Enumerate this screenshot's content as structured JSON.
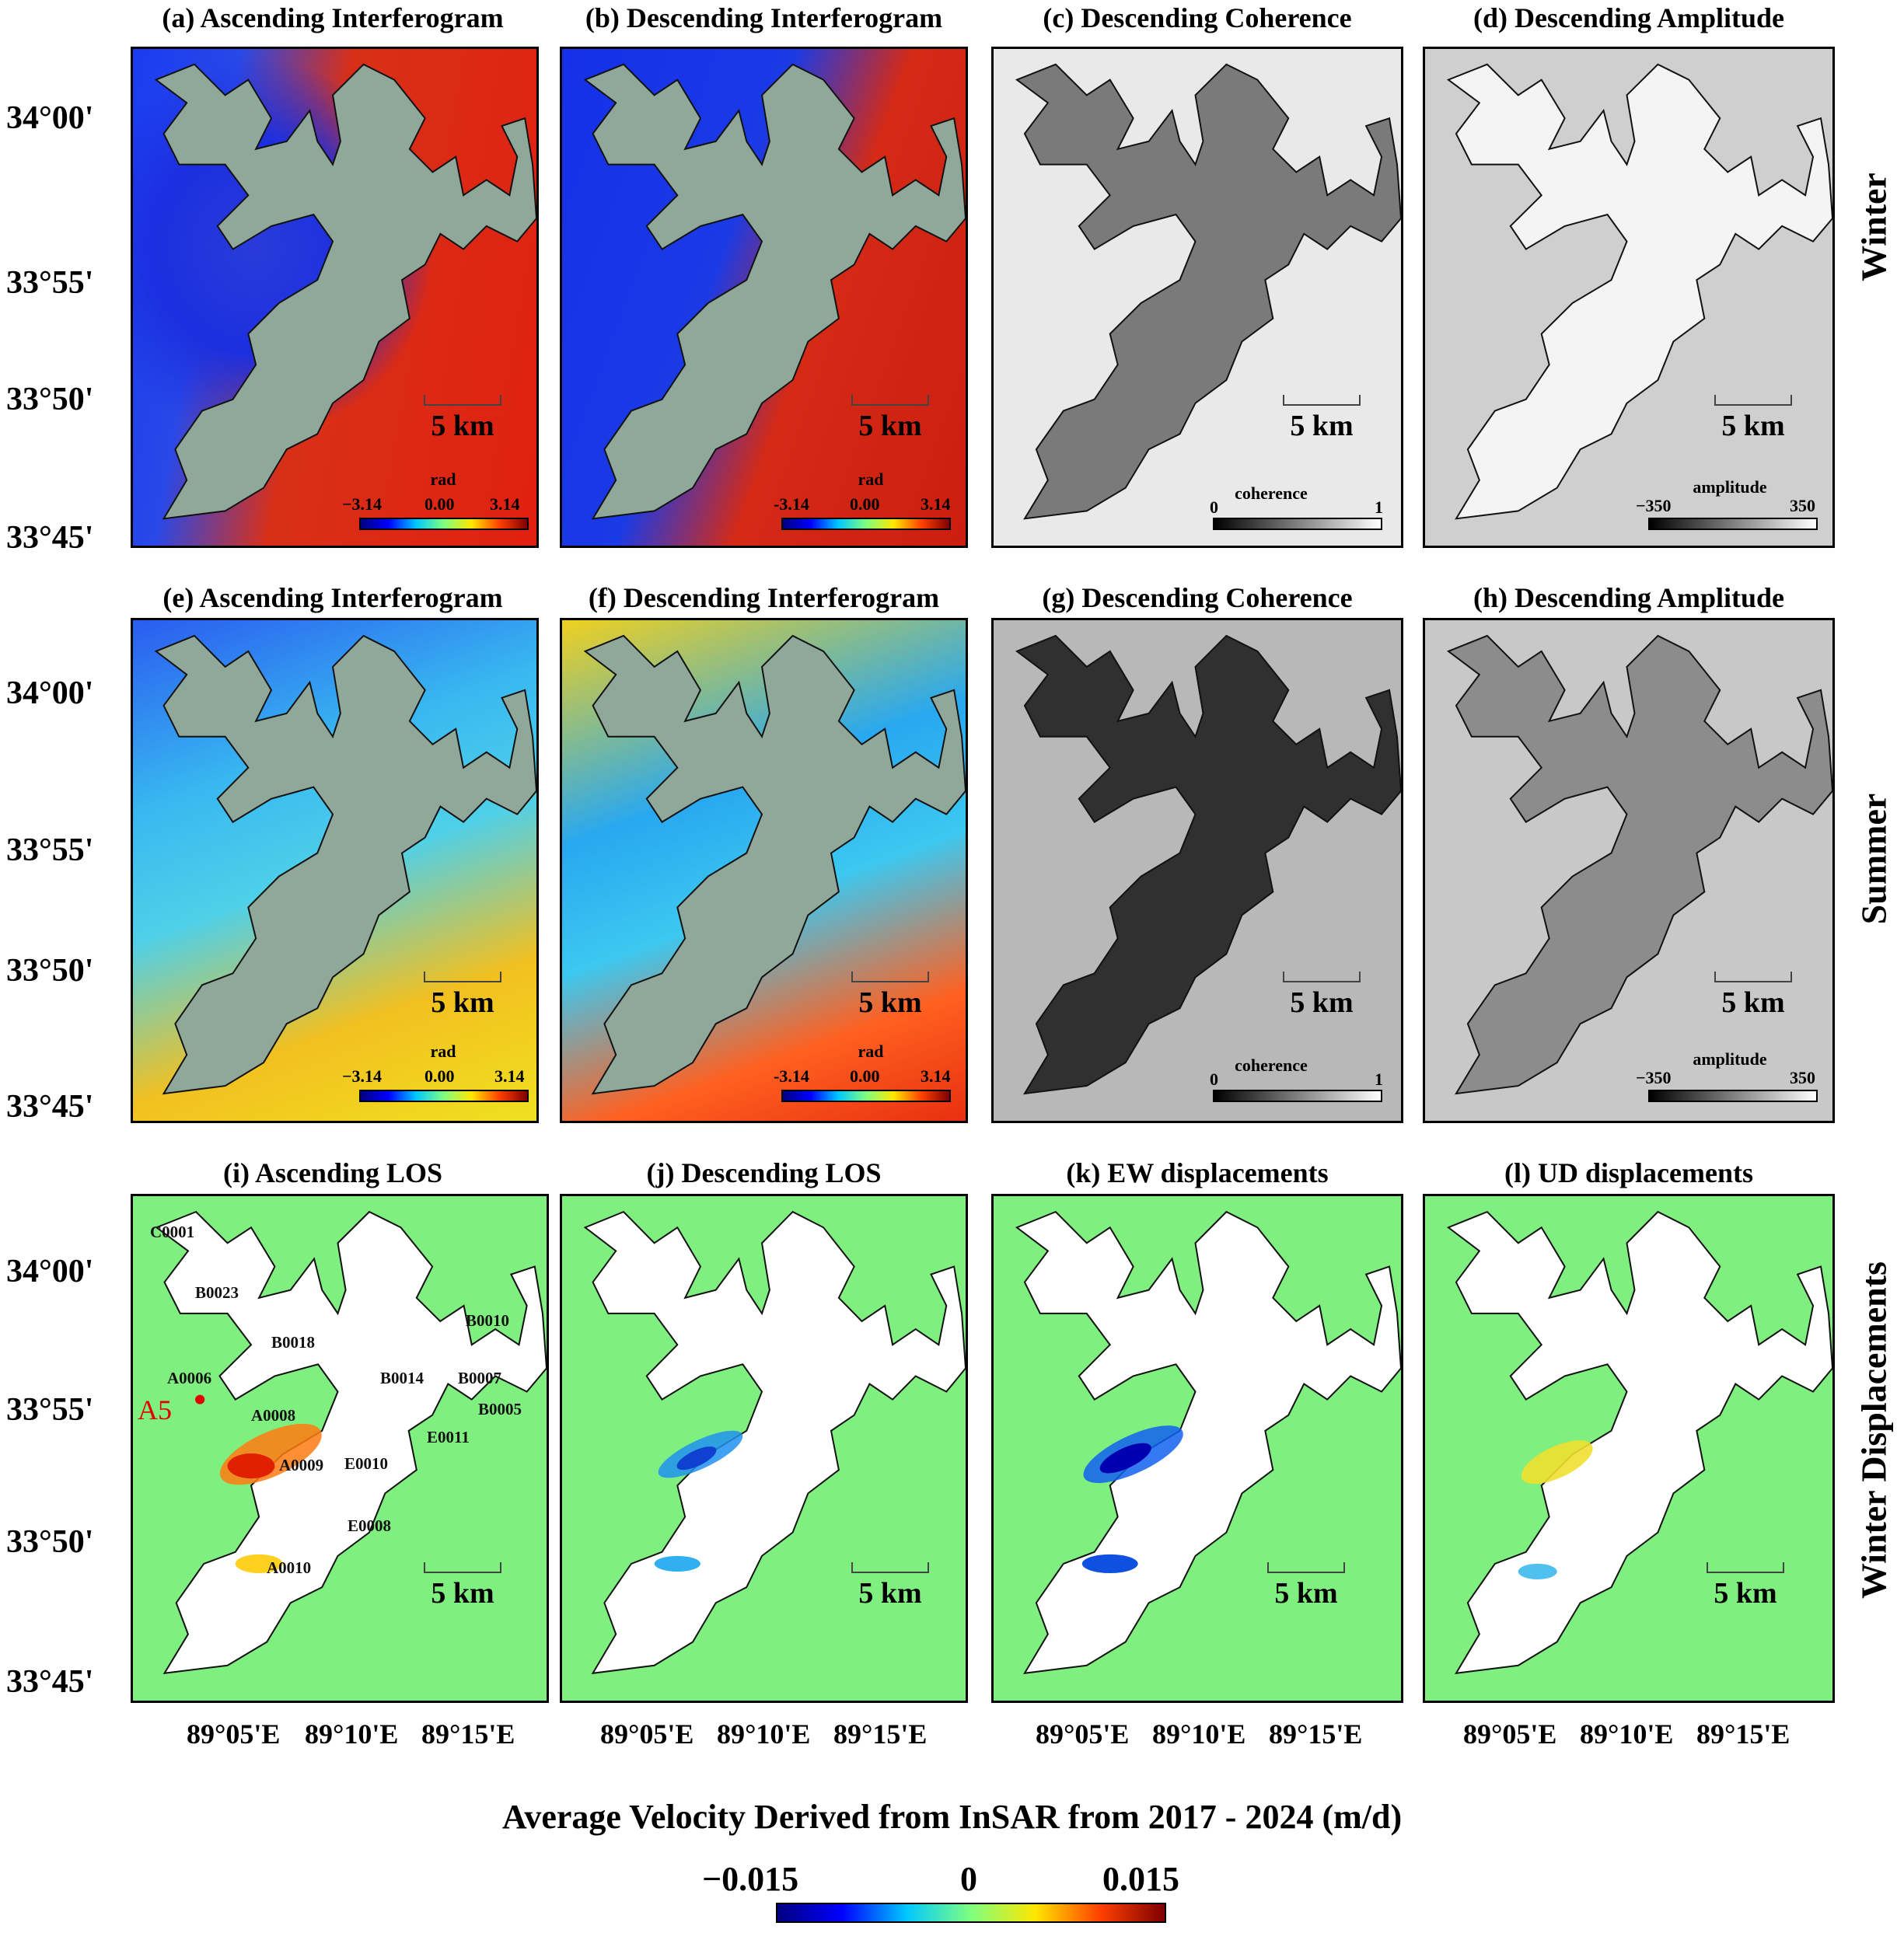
{
  "panels": {
    "a": "(a) Ascending Interferogram",
    "b": "(b) Descending Interferogram",
    "c": "(c) Descending Coherence",
    "d": "(d) Descending Amplitude",
    "e": "(e) Ascending Interferogram",
    "f": "(f) Descending Interferogram",
    "g": "(g) Descending Coherence",
    "h": "(h) Descending Amplitude",
    "i": "(i) Ascending LOS",
    "j": "(j) Descending LOS",
    "k": "(k) EW displacements",
    "l": "(l) UD displacements"
  },
  "row_labels": {
    "r1": "Winter",
    "r2": "Summer",
    "r3": "Winter Displacements"
  },
  "lat_ticks": [
    "34°00'",
    "33°55'",
    "33°50'",
    "33°45'"
  ],
  "lon_ticks": [
    "89°05'E",
    "89°10'E",
    "89°15'E"
  ],
  "scale_label": "5 km",
  "phase_cb": {
    "title": "rad",
    "min": "−3.14",
    "mid": "0.00",
    "max": "3.14",
    "min2": "-3.14"
  },
  "coh_cb": {
    "title": "coherence",
    "min": "0",
    "max": "1"
  },
  "amp_cb": {
    "title": "amplitude",
    "min": "−350",
    "max": "350"
  },
  "glacier_codes": [
    "C0001",
    "B0023",
    "B0018",
    "B0010",
    "A0006",
    "B0014",
    "B0007",
    "A0008",
    "B0005",
    "E0011",
    "A0009",
    "E0010",
    "E0008",
    "A0010"
  ],
  "point_label": "A5",
  "velocity": {
    "title": "Average Velocity Derived from InSAR from 2017 - 2024 (m/d)",
    "min": "−0.015",
    "mid": "0",
    "max": "0.015"
  },
  "colors": {
    "red": "#e00000",
    "green": "#7fff7f",
    "blue": "#0000d0"
  }
}
